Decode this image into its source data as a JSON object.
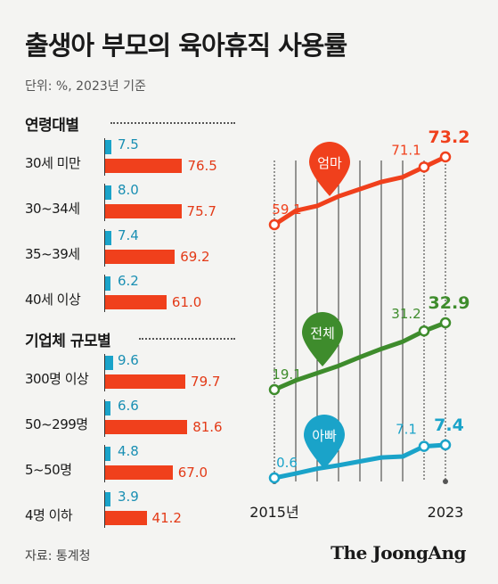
{
  "title": "출생아 부모의 육아휴직 사용률",
  "subtitle": "단위: %, 2023년 기준",
  "source": "자료: 통계청",
  "brand": "The JoongAng",
  "colors": {
    "mother": "#f0401c",
    "father": "#1aa3c9",
    "total": "#3e8c2c"
  },
  "chart_data": [
    {
      "type": "bar",
      "title": "연령대별",
      "categories": [
        "30세 미만",
        "30~34세",
        "35~39세",
        "40세 이상"
      ],
      "series": [
        {
          "name": "아빠",
          "values": [
            7.5,
            8.0,
            7.4,
            6.2
          ]
        },
        {
          "name": "엄마",
          "values": [
            76.5,
            75.7,
            69.2,
            61.0
          ]
        }
      ]
    },
    {
      "type": "bar",
      "title": "기업체 규모별",
      "categories": [
        "300명 이상",
        "50~299명",
        "5~50명",
        "4명 이하"
      ],
      "series": [
        {
          "name": "아빠",
          "values": [
            9.6,
            6.6,
            4.8,
            3.9
          ]
        },
        {
          "name": "엄마",
          "values": [
            79.7,
            81.6,
            67.0,
            41.2
          ]
        }
      ]
    },
    {
      "type": "line",
      "x": [
        2015,
        2016,
        2017,
        2018,
        2019,
        2020,
        2021,
        2022,
        2023
      ],
      "x_tick_labels": [
        "2015년",
        "2023"
      ],
      "series": [
        {
          "name": "엄마",
          "values": [
            59.1,
            62.0,
            63.0,
            65.0,
            66.5,
            68.0,
            69.0,
            71.1,
            73.2
          ],
          "start_label": "59.1",
          "end_labels": [
            "71.1",
            "73.2"
          ]
        },
        {
          "name": "전체",
          "values": [
            19.1,
            21.0,
            22.5,
            24.0,
            25.8,
            27.5,
            29.0,
            31.2,
            32.9
          ],
          "start_label": "19.1",
          "end_labels": [
            "31.2",
            "32.9"
          ]
        },
        {
          "name": "아빠",
          "values": [
            0.6,
            1.5,
            2.5,
            3.2,
            4.0,
            4.8,
            5.0,
            7.1,
            7.4
          ],
          "start_label": "0.6",
          "end_labels": [
            "7.1",
            "7.4"
          ]
        }
      ]
    }
  ]
}
